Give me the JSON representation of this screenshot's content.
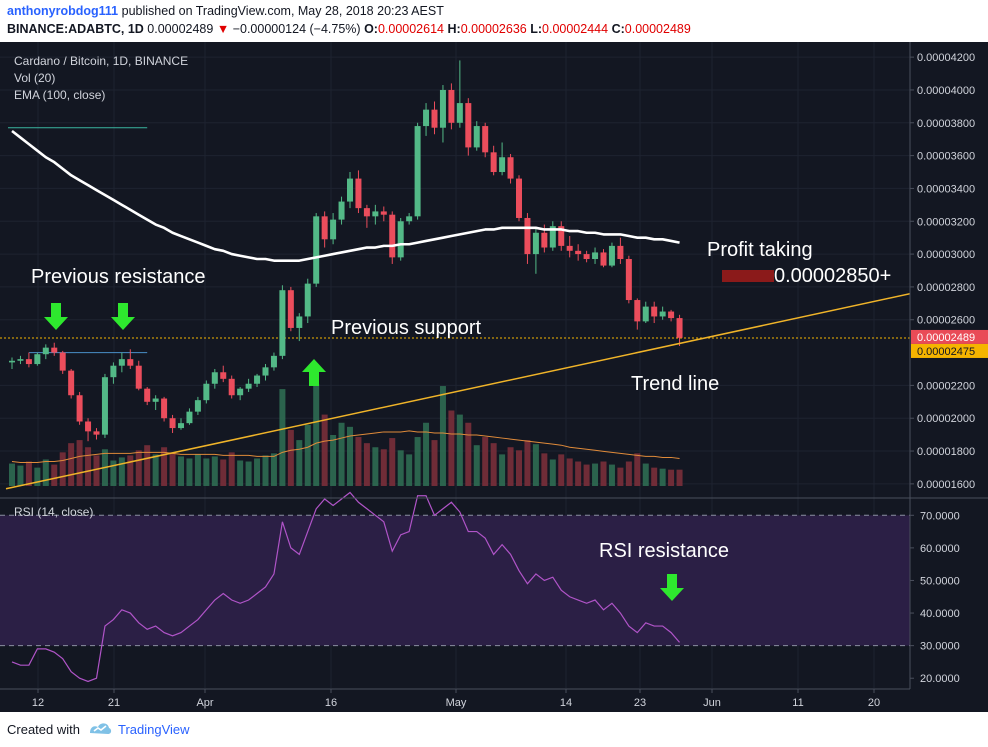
{
  "header": {
    "author": "anthonyrobdog111",
    "published_text": "published on TradingView.com, May 28, 2018 20:23 AEST",
    "symbol": "BINANCE:ADABTC, 1D",
    "last": "0.00002489",
    "change_arrow": "▼",
    "change": "−0.00000124 (−4.75%)",
    "o_label": "O:",
    "o": "0.00002614",
    "h_label": "H:",
    "h": "0.00002636",
    "l_label": "L:",
    "l": "0.00002444",
    "c_label": "C:",
    "c": "0.00002489"
  },
  "legend": {
    "title": "Cardano / Bitcoin, 1D, BINANCE",
    "vol": "Vol (20)",
    "ema": "EMA (100, close)",
    "rsi": "RSI (14, close)"
  },
  "annotations": {
    "prev_resistance": "Previous resistance",
    "prev_support": "Previous support",
    "profit_taking": "Profit taking",
    "profit_value": "0.00002850+",
    "trend_line": "Trend line",
    "rsi_resistance": "RSI resistance"
  },
  "colors": {
    "background": "#131722",
    "bull": "#53b987",
    "bear": "#eb4d5c",
    "ema": "#ffffff",
    "trend_line": "#f0b429",
    "rsi_line": "#b054c8",
    "rsi_band": "#2b1f45",
    "arrow": "#2ee82e",
    "price_label_red": "#e94b57",
    "price_label_orange": "#f5b400"
  },
  "icons": {
    "tv_logo": "tradingview-logo-icon",
    "arrow": "arrow-down-icon"
  },
  "footer": {
    "created_with": "Created with",
    "brand": "TradingView"
  },
  "chart_data": {
    "type": "candlestick",
    "title": "Cardano / Bitcoin, 1D, BINANCE",
    "price_axis": {
      "ylim": [
        1.52e-05,
        4.28e-05
      ],
      "ticks": [
        "0.00004200",
        "0.00004000",
        "0.00003800",
        "0.00003600",
        "0.00003400",
        "0.00003200",
        "0.00003000",
        "0.00002800",
        "0.00002600",
        "0.00002200",
        "0.00002000",
        "0.00001800",
        "0.00001600"
      ],
      "labels": [
        {
          "value": "0.00002489",
          "style": "red"
        },
        {
          "value": "0.00002475",
          "style": "orange"
        }
      ]
    },
    "x_axis": {
      "labels": [
        "12",
        "21",
        "Apr",
        "16",
        "May",
        "14",
        "23",
        "Jun",
        "11",
        "20"
      ]
    },
    "candles": [
      [
        2.34e-05,
        2.37e-05,
        2.3e-05,
        2.35e-05
      ],
      [
        2.35e-05,
        2.38e-05,
        2.33e-05,
        2.36e-05
      ],
      [
        2.36e-05,
        2.4e-05,
        2.31e-05,
        2.33e-05
      ],
      [
        2.33e-05,
        2.4e-05,
        2.32e-05,
        2.39e-05
      ],
      [
        2.39e-05,
        2.45e-05,
        2.36e-05,
        2.43e-05
      ],
      [
        2.43e-05,
        2.46e-05,
        2.38e-05,
        2.4e-05
      ],
      [
        2.4e-05,
        2.41e-05,
        2.27e-05,
        2.29e-05
      ],
      [
        2.29e-05,
        2.3e-05,
        2.12e-05,
        2.14e-05
      ],
      [
        2.14e-05,
        2.16e-05,
        1.96e-05,
        1.98e-05
      ],
      [
        1.98e-05,
        2e-05,
        1.86e-05,
        1.92e-05
      ],
      [
        1.92e-05,
        1.94e-05,
        1.87e-05,
        1.9e-05
      ],
      [
        1.9e-05,
        2.27e-05,
        1.88e-05,
        2.25e-05
      ],
      [
        2.25e-05,
        2.34e-05,
        2.21e-05,
        2.32e-05
      ],
      [
        2.32e-05,
        2.4e-05,
        2.28e-05,
        2.36e-05
      ],
      [
        2.36e-05,
        2.42e-05,
        2.3e-05,
        2.32e-05
      ],
      [
        2.32e-05,
        2.35e-05,
        2.17e-05,
        2.18e-05
      ],
      [
        2.18e-05,
        2.19e-05,
        2.08e-05,
        2.1e-05
      ],
      [
        2.1e-05,
        2.14e-05,
        2.05e-05,
        2.12e-05
      ],
      [
        2.12e-05,
        2.13e-05,
        1.98e-05,
        2e-05
      ],
      [
        2e-05,
        2.02e-05,
        1.91e-05,
        1.94e-05
      ],
      [
        1.94e-05,
        2e-05,
        1.93e-05,
        1.97e-05
      ],
      [
        1.97e-05,
        2.06e-05,
        1.96e-05,
        2.04e-05
      ],
      [
        2.04e-05,
        2.13e-05,
        2.02e-05,
        2.11e-05
      ],
      [
        2.11e-05,
        2.23e-05,
        2.09e-05,
        2.21e-05
      ],
      [
        2.21e-05,
        2.3e-05,
        2.18e-05,
        2.28e-05
      ],
      [
        2.28e-05,
        2.32e-05,
        2.22e-05,
        2.24e-05
      ],
      [
        2.24e-05,
        2.26e-05,
        2.12e-05,
        2.14e-05
      ],
      [
        2.14e-05,
        2.19e-05,
        2.11e-05,
        2.18e-05
      ],
      [
        2.18e-05,
        2.24e-05,
        2.16e-05,
        2.21e-05
      ],
      [
        2.21e-05,
        2.27e-05,
        2.19e-05,
        2.26e-05
      ],
      [
        2.26e-05,
        2.33e-05,
        2.23e-05,
        2.31e-05
      ],
      [
        2.31e-05,
        2.4e-05,
        2.29e-05,
        2.38e-05
      ],
      [
        2.38e-05,
        2.81e-05,
        2.36e-05,
        2.78e-05
      ],
      [
        2.78e-05,
        2.8e-05,
        2.53e-05,
        2.55e-05
      ],
      [
        2.55e-05,
        2.64e-05,
        2.47e-05,
        2.62e-05
      ],
      [
        2.62e-05,
        2.85e-05,
        2.58e-05,
        2.82e-05
      ],
      [
        2.82e-05,
        3.25e-05,
        2.8e-05,
        3.23e-05
      ],
      [
        3.23e-05,
        3.26e-05,
        3.04e-05,
        3.09e-05
      ],
      [
        3.09e-05,
        3.25e-05,
        3.06e-05,
        3.21e-05
      ],
      [
        3.21e-05,
        3.35e-05,
        3.18e-05,
        3.32e-05
      ],
      [
        3.32e-05,
        3.5e-05,
        3.28e-05,
        3.46e-05
      ],
      [
        3.46e-05,
        3.51e-05,
        3.25e-05,
        3.28e-05
      ],
      [
        3.28e-05,
        3.3e-05,
        3.16e-05,
        3.23e-05
      ],
      [
        3.23e-05,
        3.3e-05,
        3.18e-05,
        3.26e-05
      ],
      [
        3.26e-05,
        3.29e-05,
        3.2e-05,
        3.24e-05
      ],
      [
        3.24e-05,
        3.26e-05,
        2.94e-05,
        2.98e-05
      ],
      [
        2.98e-05,
        3.22e-05,
        2.96e-05,
        3.2e-05
      ],
      [
        3.2e-05,
        3.25e-05,
        3.18e-05,
        3.23e-05
      ],
      [
        3.23e-05,
        3.8e-05,
        3.21e-05,
        3.78e-05
      ],
      [
        3.78e-05,
        3.92e-05,
        3.72e-05,
        3.88e-05
      ],
      [
        3.88e-05,
        3.93e-05,
        3.73e-05,
        3.77e-05
      ],
      [
        3.77e-05,
        4.03e-05,
        3.68e-05,
        4e-05
      ],
      [
        4e-05,
        4.04e-05,
        3.76e-05,
        3.8e-05
      ],
      [
        3.8e-05,
        4.18e-05,
        3.77e-05,
        3.92e-05
      ],
      [
        3.92e-05,
        3.95e-05,
        3.6e-05,
        3.65e-05
      ],
      [
        3.65e-05,
        3.81e-05,
        3.63e-05,
        3.78e-05
      ],
      [
        3.78e-05,
        3.8e-05,
        3.59e-05,
        3.62e-05
      ],
      [
        3.62e-05,
        3.66e-05,
        3.48e-05,
        3.5e-05
      ],
      [
        3.5e-05,
        3.68e-05,
        3.48e-05,
        3.59e-05
      ],
      [
        3.59e-05,
        3.61e-05,
        3.43e-05,
        3.46e-05
      ],
      [
        3.46e-05,
        3.48e-05,
        3.2e-05,
        3.22e-05
      ],
      [
        3.22e-05,
        3.25e-05,
        2.94e-05,
        3e-05
      ],
      [
        3e-05,
        3.16e-05,
        2.88e-05,
        3.13e-05
      ],
      [
        3.13e-05,
        3.18e-05,
        3.01e-05,
        3.04e-05
      ],
      [
        3.04e-05,
        3.2e-05,
        3.02e-05,
        3.17e-05
      ],
      [
        3.17e-05,
        3.2e-05,
        3.02e-05,
        3.05e-05
      ],
      [
        3.05e-05,
        3.11e-05,
        2.98e-05,
        3.02e-05
      ],
      [
        3.02e-05,
        3.06e-05,
        2.96e-05,
        3e-05
      ],
      [
        3e-05,
        3.02e-05,
        2.95e-05,
        2.97e-05
      ],
      [
        2.97e-05,
        3.04e-05,
        2.94e-05,
        3.01e-05
      ],
      [
        3.01e-05,
        3.03e-05,
        2.92e-05,
        2.93e-05
      ],
      [
        2.93e-05,
        3.07e-05,
        2.92e-05,
        3.05e-05
      ],
      [
        3.05e-05,
        3.1e-05,
        2.94e-05,
        2.97e-05
      ],
      [
        2.97e-05,
        2.99e-05,
        2.7e-05,
        2.72e-05
      ],
      [
        2.72e-05,
        2.73e-05,
        2.54e-05,
        2.59e-05
      ],
      [
        2.59e-05,
        2.71e-05,
        2.58e-05,
        2.68e-05
      ],
      [
        2.68e-05,
        2.71e-05,
        2.58e-05,
        2.62e-05
      ],
      [
        2.62e-05,
        2.68e-05,
        2.6e-05,
        2.65e-05
      ],
      [
        2.65e-05,
        2.66e-05,
        2.59e-05,
        2.61e-05
      ],
      [
        2.61e-05,
        2.63e-05,
        2.44e-05,
        2.49e-05
      ]
    ],
    "volume": [
      0.22,
      0.2,
      0.24,
      0.18,
      0.26,
      0.21,
      0.33,
      0.42,
      0.45,
      0.38,
      0.3,
      0.36,
      0.25,
      0.28,
      0.3,
      0.35,
      0.4,
      0.31,
      0.38,
      0.33,
      0.29,
      0.27,
      0.31,
      0.27,
      0.29,
      0.26,
      0.33,
      0.25,
      0.24,
      0.27,
      0.3,
      0.32,
      0.95,
      0.55,
      0.45,
      0.6,
      1.0,
      0.7,
      0.5,
      0.62,
      0.58,
      0.48,
      0.42,
      0.38,
      0.36,
      0.47,
      0.35,
      0.31,
      0.48,
      0.62,
      0.45,
      0.98,
      0.74,
      0.7,
      0.62,
      0.4,
      0.48,
      0.42,
      0.31,
      0.38,
      0.35,
      0.45,
      0.41,
      0.32,
      0.26,
      0.31,
      0.27,
      0.24,
      0.21,
      0.22,
      0.24,
      0.21,
      0.18,
      0.24,
      0.32,
      0.22,
      0.18,
      0.17,
      0.16,
      0.16
    ],
    "vol_ma": [
      0.24,
      0.23,
      0.23,
      0.23,
      0.24,
      0.24,
      0.25,
      0.27,
      0.29,
      0.3,
      0.31,
      0.32,
      0.32,
      0.32,
      0.32,
      0.33,
      0.33,
      0.33,
      0.33,
      0.32,
      0.31,
      0.31,
      0.31,
      0.31,
      0.31,
      0.3,
      0.3,
      0.3,
      0.3,
      0.29,
      0.29,
      0.29,
      0.33,
      0.35,
      0.36,
      0.38,
      0.42,
      0.44,
      0.45,
      0.47,
      0.49,
      0.5,
      0.51,
      0.52,
      0.53,
      0.53,
      0.53,
      0.54,
      0.53,
      0.53,
      0.52,
      0.52,
      0.51,
      0.51,
      0.5,
      0.5,
      0.49,
      0.48,
      0.47,
      0.46,
      0.45,
      0.44,
      0.43,
      0.42,
      0.41,
      0.4,
      0.38,
      0.37,
      0.36,
      0.35,
      0.34,
      0.33,
      0.32,
      0.31,
      0.3,
      0.29,
      0.29,
      0.28,
      0.28,
      0.27
    ],
    "ema100": [
      3.75e-05,
      3.71e-05,
      3.67e-05,
      3.63e-05,
      3.59e-05,
      3.56e-05,
      3.52e-05,
      3.48e-05,
      3.45e-05,
      3.42e-05,
      3.39e-05,
      3.36e-05,
      3.33e-05,
      3.3e-05,
      3.27e-05,
      3.24e-05,
      3.21e-05,
      3.18e-05,
      3.16e-05,
      3.13e-05,
      3.11e-05,
      3.09e-05,
      3.07e-05,
      3.05e-05,
      3.03e-05,
      3.02e-05,
      3e-05,
      2.99e-05,
      2.98e-05,
      2.97e-05,
      2.97e-05,
      2.96e-05,
      2.96e-05,
      2.96e-05,
      2.96e-05,
      2.97e-05,
      2.98e-05,
      2.99e-05,
      3e-05,
      3.01e-05,
      3.02e-05,
      3.03e-05,
      3.04e-05,
      3.04e-05,
      3.05e-05,
      3.05e-05,
      3.06e-05,
      3.06e-05,
      3.07e-05,
      3.08e-05,
      3.09e-05,
      3.1e-05,
      3.11e-05,
      3.12e-05,
      3.13e-05,
      3.14e-05,
      3.15e-05,
      3.15e-05,
      3.16e-05,
      3.16e-05,
      3.16e-05,
      3.16e-05,
      3.16e-05,
      3.15e-05,
      3.15e-05,
      3.15e-05,
      3.14e-05,
      3.14e-05,
      3.13e-05,
      3.13e-05,
      3.12e-05,
      3.12e-05,
      3.12e-05,
      3.11e-05,
      3.1e-05,
      3.1e-05,
      3.09e-05,
      3.09e-05,
      3.08e-05,
      3.07e-05
    ],
    "rsi": {
      "ylim": [
        17,
        75
      ],
      "ticks": [
        "70.0000",
        "60.0000",
        "50.0000",
        "40.0000",
        "30.0000",
        "20.0000"
      ],
      "band": [
        30,
        70
      ],
      "values": [
        25,
        24,
        24,
        29,
        29,
        28,
        26,
        22,
        20,
        19,
        20,
        36,
        38,
        41,
        40,
        37,
        35,
        36,
        34,
        33,
        34,
        36,
        38,
        41,
        44,
        46,
        44,
        43,
        44,
        46,
        48,
        52,
        68,
        60,
        58,
        65,
        72,
        75,
        73,
        75,
        77,
        74,
        72,
        70,
        68,
        59,
        64,
        65,
        76,
        76,
        70,
        72,
        74,
        71,
        65,
        65,
        63,
        58,
        61,
        58,
        53,
        49,
        52,
        50,
        51,
        47,
        45,
        44,
        43,
        44,
        41,
        43,
        40,
        36,
        34,
        37,
        36,
        36,
        34,
        31
      ],
      "legend": "RSI (14, close)"
    },
    "drawings": {
      "trend_line": {
        "from": [
          0,
          1.57e-05
        ],
        "to": [
          110,
          2.8e-05
        ]
      },
      "resistance_line": {
        "from": [
          2,
          2.4e-05
        ],
        "to": [
          16,
          2.4e-05
        ]
      },
      "top_line": {
        "from": [
          0,
          3.77e-05
        ],
        "to": [
          16,
          3.77e-05
        ]
      },
      "price_line": 2.489e-05
    }
  }
}
